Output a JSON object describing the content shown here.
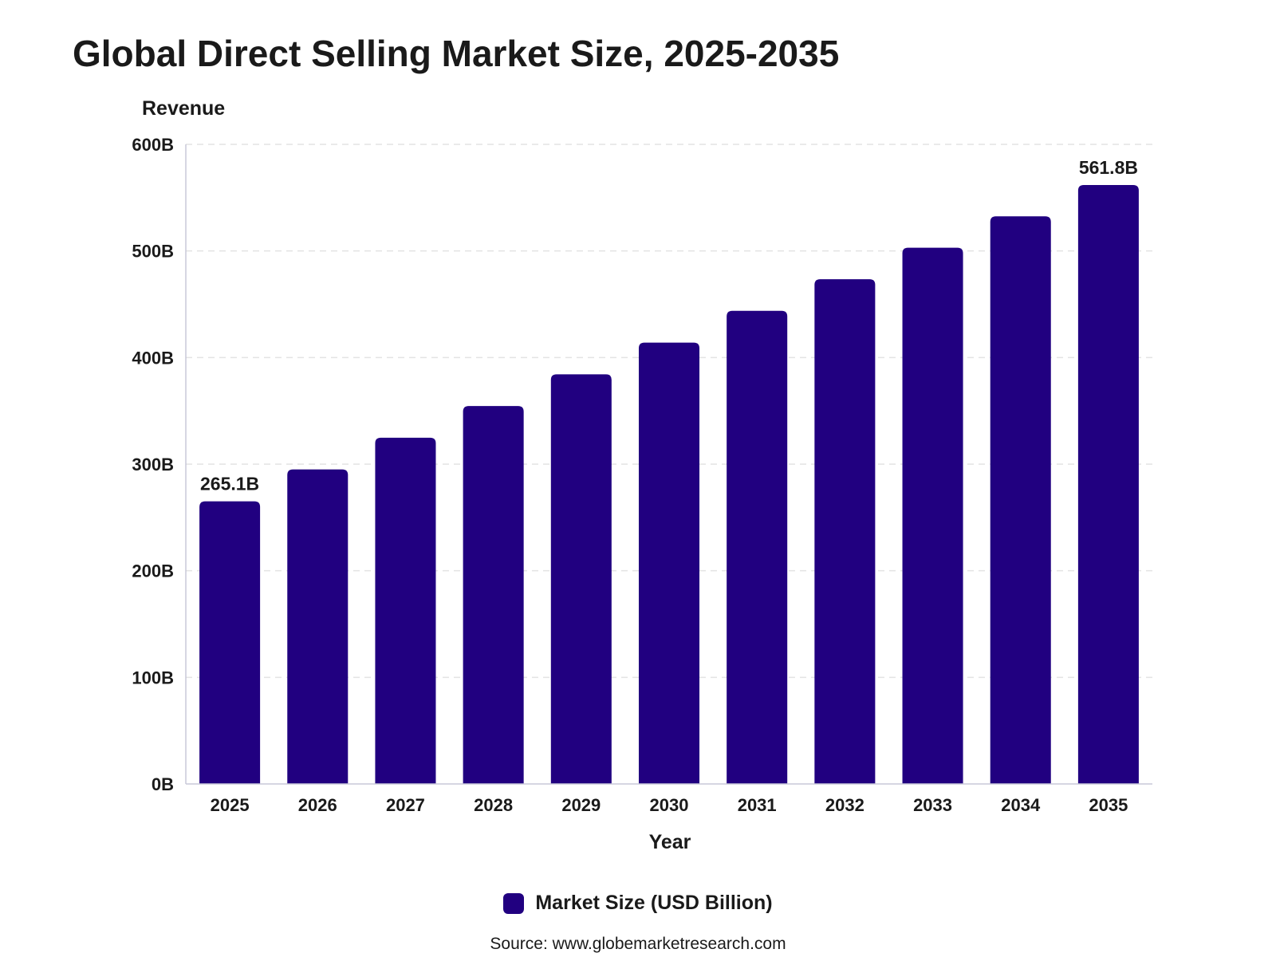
{
  "colors": {
    "bar": "#210080",
    "grid": "#e3e3e3",
    "axis": "#c8c8d8"
  },
  "chart_data": {
    "type": "bar",
    "title": "Global Direct Selling Market Size, 2025-2035",
    "xlabel": "Year",
    "ylabel": "Revenue",
    "categories": [
      "2025",
      "2026",
      "2027",
      "2028",
      "2029",
      "2030",
      "2031",
      "2032",
      "2033",
      "2034",
      "2035"
    ],
    "series": [
      {
        "name": "Market Size (USD Billion)",
        "values": [
          265.1,
          295.0,
          324.8,
          354.5,
          384.3,
          414.0,
          443.8,
          473.5,
          503.0,
          532.5,
          561.8
        ]
      }
    ],
    "data_labels": [
      "265.1B",
      "",
      "",
      "",
      "",
      "",
      "",
      "",
      "",
      "",
      "561.8B"
    ],
    "ylim": [
      0,
      600
    ],
    "yticks": [
      0,
      100,
      200,
      300,
      400,
      500,
      600
    ],
    "ytick_labels": [
      "0B",
      "100B",
      "200B",
      "300B",
      "400B",
      "500B",
      "600B"
    ],
    "grid": true,
    "legend_position": "bottom-center",
    "source": "Source: www.globemarketresearch.com"
  }
}
